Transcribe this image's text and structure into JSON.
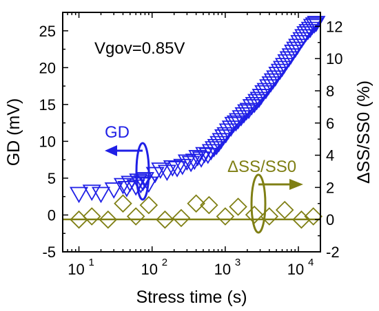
{
  "chart_data": {
    "type": "scatter",
    "xlabel": "Stress time (s)",
    "ylabel_left": "GD (mV)",
    "ylabel_right": "ΔSS/SS0 (%)",
    "x_scale": "log",
    "xlim": [
      6,
      20000
    ],
    "ylim_left": [
      -5,
      27.5
    ],
    "ylim_right": [
      -2,
      12.87
    ],
    "x_ticks": [
      10,
      100,
      1000,
      10000
    ],
    "x_tick_labels": [
      {
        "base": "10",
        "exp": "1"
      },
      {
        "base": "10",
        "exp": "2"
      },
      {
        "base": "10",
        "exp": "3"
      },
      {
        "base": "10",
        "exp": "4"
      }
    ],
    "y_left_ticks": [
      -5,
      0,
      5,
      10,
      15,
      20,
      25
    ],
    "y_left_tick_labels": [
      "-5",
      "0",
      "5",
      "10",
      "15",
      "20",
      "25"
    ],
    "y_right_ticks": [
      -2,
      0,
      2,
      4,
      6,
      8,
      10,
      12
    ],
    "y_right_tick_labels": [
      "-2",
      "0",
      "2",
      "4",
      "6",
      "8",
      "10",
      "12"
    ],
    "grid": false,
    "legend": "none",
    "annotations": {
      "vgov": "Vgov=0.85V",
      "gd_label": "GD",
      "ss_label": "ΔSS/SS0"
    },
    "colors": {
      "gd": "#1f1fe6",
      "ss": "#7f7f14",
      "axes": "#000000"
    },
    "series": [
      {
        "name": "GD",
        "axis": "left",
        "marker": "triangle-down",
        "x": [
          10,
          15,
          20,
          30,
          40,
          45,
          50,
          60,
          65,
          70,
          75,
          80,
          90,
          110,
          130,
          160,
          190,
          220,
          260,
          300,
          340,
          380,
          420,
          470,
          520,
          580,
          640,
          700,
          760,
          820,
          880,
          950,
          1020,
          1100,
          1200,
          1300,
          1400,
          1500,
          1650,
          1800,
          1950,
          2100,
          2300,
          2500,
          2700,
          2900,
          3100,
          3350,
          3600,
          3900,
          4200,
          4500,
          4850,
          5200,
          5600,
          6000,
          6400,
          6900,
          7400,
          7900,
          8500,
          9100,
          9700,
          10400,
          11100,
          11800,
          12600,
          13500,
          14500,
          15500,
          16500,
          17500
        ],
        "y": [
          2.8,
          3.1,
          2.8,
          3.4,
          4.0,
          3.6,
          4.3,
          3.8,
          4.6,
          4.1,
          4.4,
          4.8,
          4.2,
          5.5,
          6.1,
          5.8,
          6.4,
          6.3,
          6.6,
          7.2,
          7.0,
          7.3,
          7.8,
          7.6,
          8.2,
          8.1,
          8.6,
          9.0,
          9.3,
          9.7,
          10.1,
          10.6,
          10.9,
          11.4,
          11.8,
          12.3,
          12.5,
          12.8,
          13.2,
          13.6,
          14.0,
          14.2,
          14.7,
          15.0,
          15.4,
          15.7,
          16.1,
          16.6,
          16.9,
          17.4,
          17.8,
          18.2,
          18.6,
          19.1,
          19.5,
          19.9,
          20.3,
          20.8,
          21.2,
          21.6,
          22.1,
          22.5,
          22.9,
          23.4,
          23.8,
          24.2,
          24.6,
          24.9,
          25.2,
          25.6,
          25.8,
          26.0
        ]
      },
      {
        "name": "ΔSS/SS0",
        "axis": "right",
        "marker": "diamond",
        "x": [
          10,
          15,
          25,
          40,
          60,
          90,
          150,
          250,
          400,
          600,
          1000,
          1500,
          2500,
          4000,
          6500,
          11000,
          16000
        ],
        "y": [
          0.0,
          0.2,
          0.0,
          1.0,
          0.2,
          0.9,
          0.0,
          0.1,
          1.0,
          0.9,
          0.2,
          0.8,
          0.3,
          0.2,
          0.6,
          0.0,
          0.2
        ]
      }
    ],
    "reference_line": {
      "axis": "left",
      "y": -0.6
    }
  }
}
